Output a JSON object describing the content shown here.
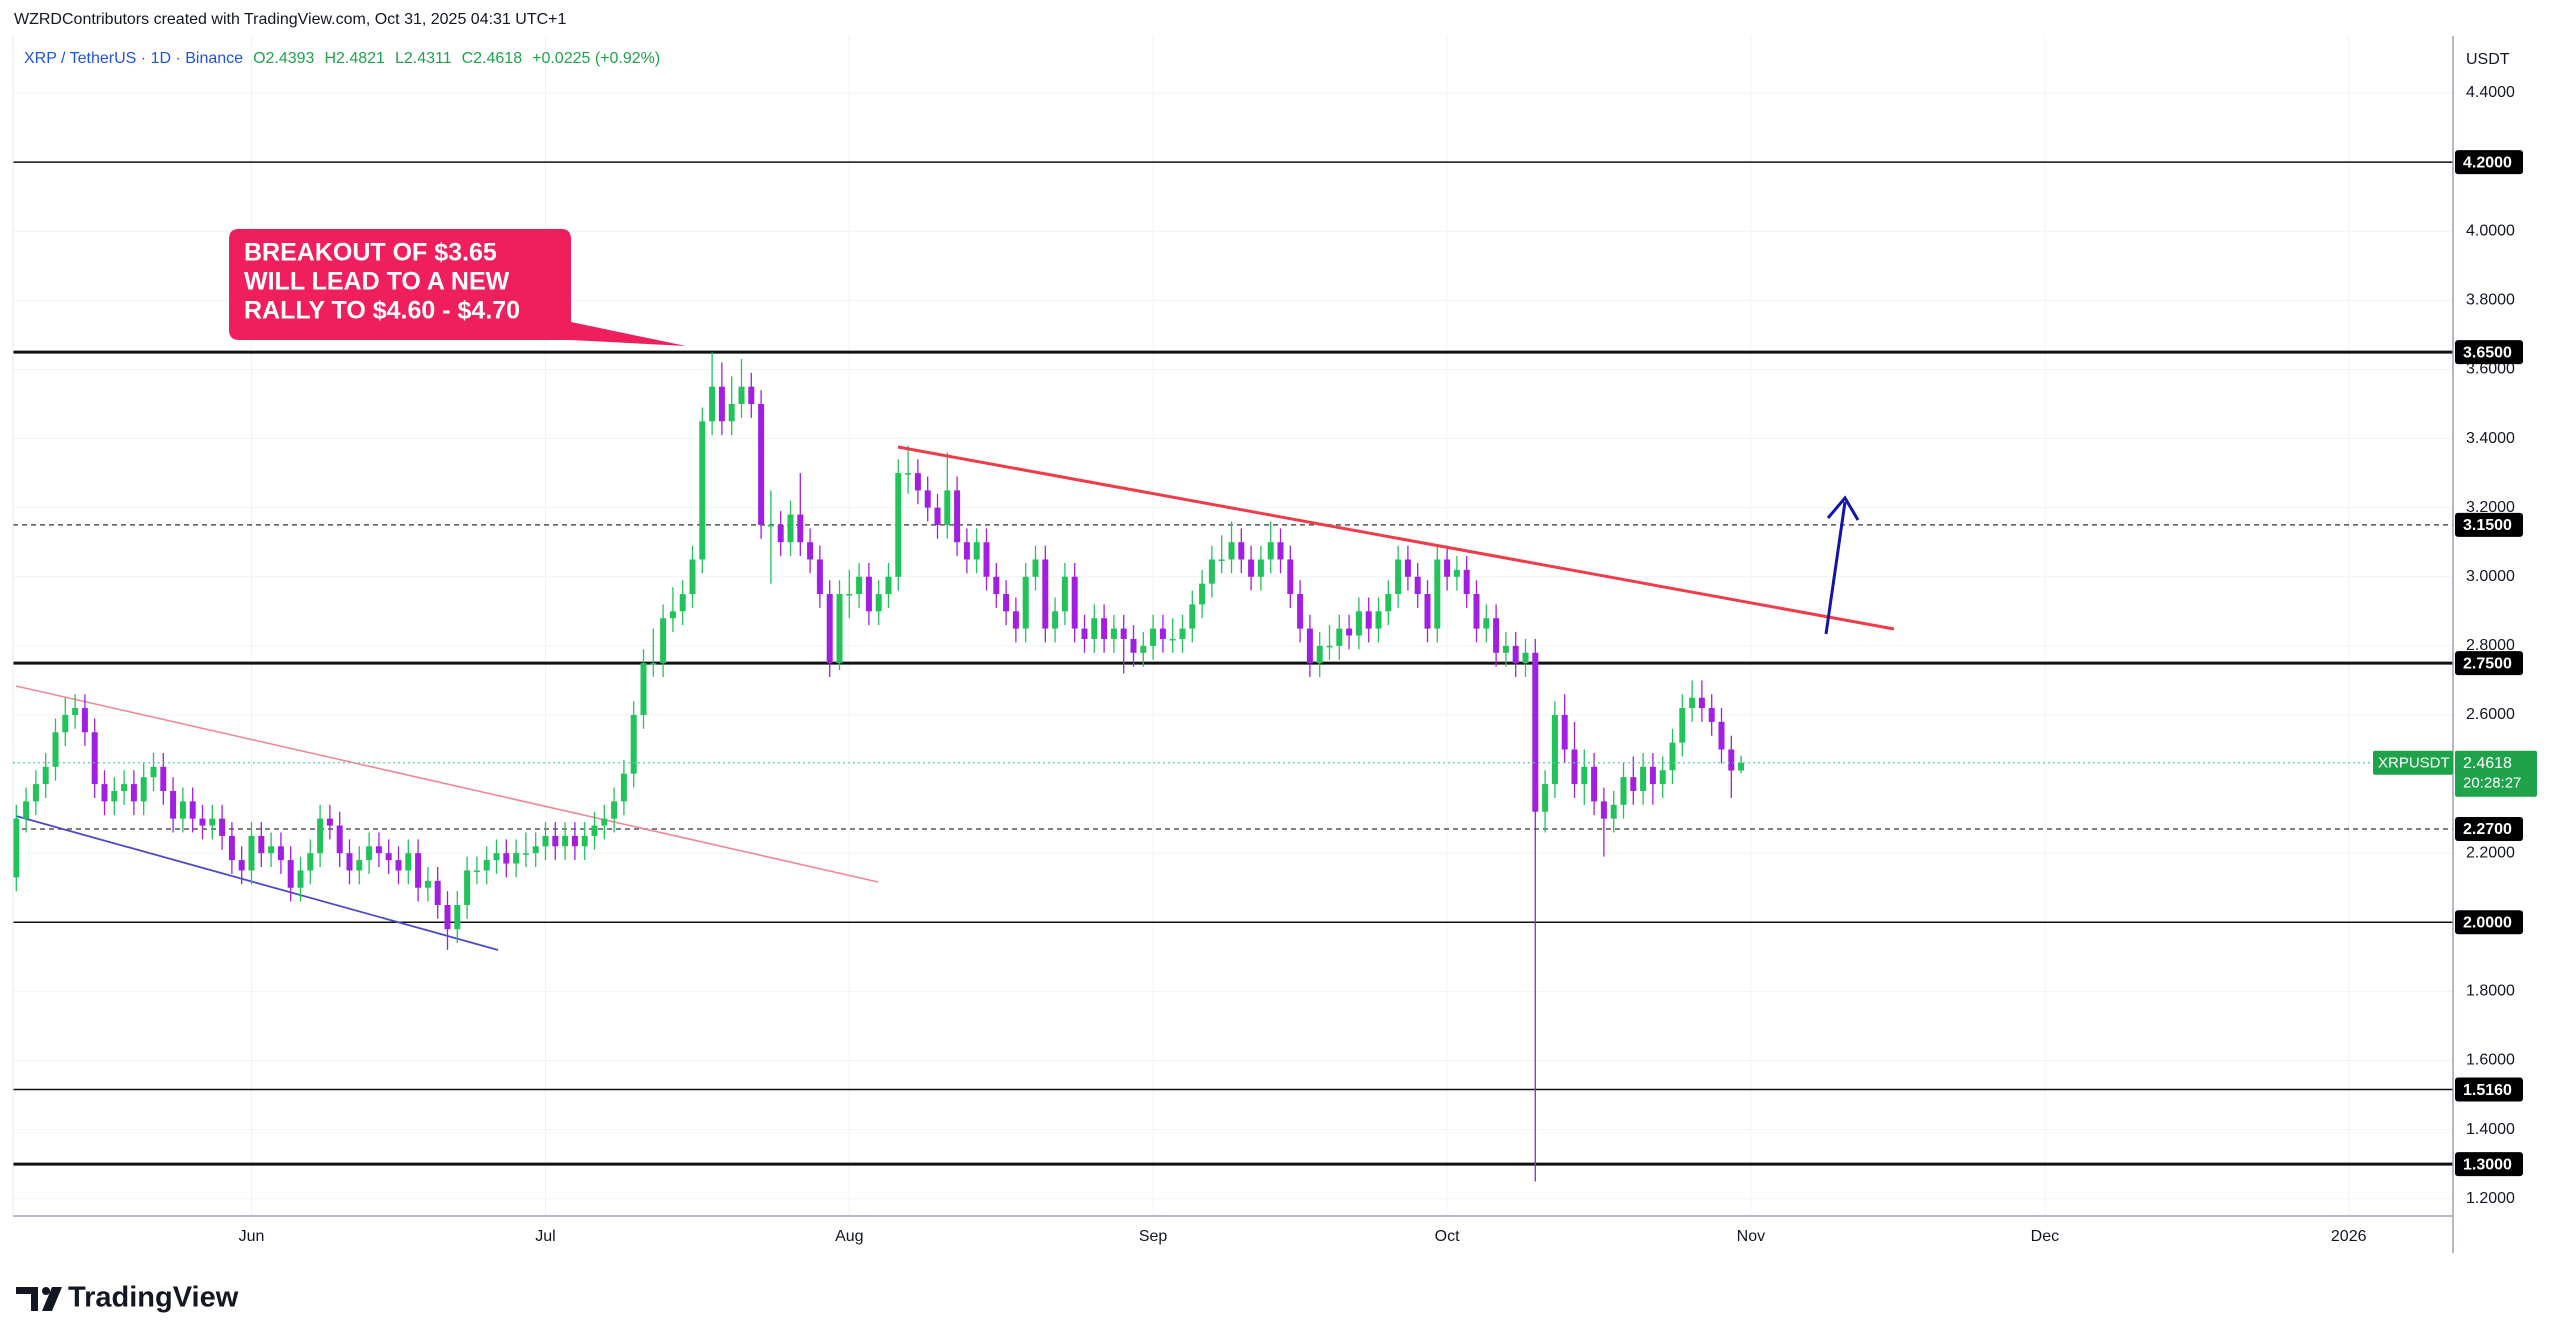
{
  "header": "WZRDContributors created with TradingView.com, Oct 31, 2025 04:31 UTC+1",
  "brand": "TradingView",
  "chart_data": {
    "type": "candlestick",
    "legend": {
      "symbol": "XRP / TetherUS · 1D · Binance",
      "open": "O2.4393",
      "high": "H2.4821",
      "low": "L2.4311",
      "close": "C2.4618",
      "change": "+0.0225 (+0.92%)"
    },
    "y_axis_label": "USDT",
    "up_color": "#22c35a",
    "down_color": "#a21ee0",
    "ylim": [
      1.15,
      4.565
    ],
    "yticks": [
      {
        "value": 4.4,
        "label": "4.4000"
      },
      {
        "value": 4.0,
        "label": "4.0000"
      },
      {
        "value": 3.8,
        "label": "3.8000"
      },
      {
        "value": 3.6,
        "label": "3.6000"
      },
      {
        "value": 3.4,
        "label": "3.4000"
      },
      {
        "value": 3.2,
        "label": "3.2000"
      },
      {
        "value": 3.0,
        "label": "3.0000"
      },
      {
        "value": 2.8,
        "label": "2.8000"
      },
      {
        "value": 2.6,
        "label": "2.6000"
      },
      {
        "value": 2.2,
        "label": "2.2000"
      },
      {
        "value": 1.8,
        "label": "1.8000"
      },
      {
        "value": 1.6,
        "label": "1.6000"
      },
      {
        "value": 1.4,
        "label": "1.4000"
      },
      {
        "value": 1.2,
        "label": "1.2000"
      }
    ],
    "grid": true,
    "x_labels": [
      "Jun",
      "Jul",
      "Aug",
      "Sep",
      "Oct",
      "Nov",
      "Dec",
      "2026"
    ],
    "levels": [
      {
        "value": 4.2,
        "label": "4.2000",
        "style": "solid",
        "weight": "thin"
      },
      {
        "value": 3.65,
        "label": "3.6500",
        "style": "solid",
        "weight": "thick"
      },
      {
        "value": 3.15,
        "label": "3.1500",
        "style": "dashed",
        "weight": "thin"
      },
      {
        "value": 2.75,
        "label": "2.7500",
        "style": "solid",
        "weight": "thick"
      },
      {
        "value": 2.27,
        "label": "2.2700",
        "style": "dashed",
        "weight": "thin"
      },
      {
        "value": 2.0,
        "label": "2.0000",
        "style": "solid",
        "weight": "thin"
      },
      {
        "value": 1.516,
        "label": "1.5160",
        "style": "solid",
        "weight": "thin"
      },
      {
        "value": 1.3,
        "label": "1.3000",
        "style": "solid",
        "weight": "thick"
      }
    ],
    "current_price": {
      "name": "XRPUSDT",
      "value": 2.4618,
      "label": "2.4618",
      "countdown": "20:28:27"
    },
    "annotation": [
      "BREAKOUT OF $3.65",
      "WILL LEAD TO A NEW",
      "RALLY TO $4.60 - $4.70"
    ],
    "candles": [
      [
        2.13,
        2.34,
        2.09,
        2.3
      ],
      [
        2.3,
        2.39,
        2.26,
        2.35
      ],
      [
        2.35,
        2.44,
        2.31,
        2.4
      ],
      [
        2.4,
        2.49,
        2.36,
        2.45
      ],
      [
        2.45,
        2.59,
        2.41,
        2.55
      ],
      [
        2.55,
        2.65,
        2.51,
        2.6
      ],
      [
        2.6,
        2.66,
        2.56,
        2.62
      ],
      [
        2.62,
        2.66,
        2.51,
        2.55
      ],
      [
        2.55,
        2.59,
        2.36,
        2.4
      ],
      [
        2.4,
        2.44,
        2.31,
        2.35
      ],
      [
        2.35,
        2.42,
        2.31,
        2.38
      ],
      [
        2.38,
        2.44,
        2.34,
        2.4
      ],
      [
        2.4,
        2.44,
        2.31,
        2.35
      ],
      [
        2.35,
        2.46,
        2.31,
        2.42
      ],
      [
        2.42,
        2.49,
        2.38,
        2.45
      ],
      [
        2.45,
        2.49,
        2.34,
        2.38
      ],
      [
        2.38,
        2.42,
        2.26,
        2.3
      ],
      [
        2.3,
        2.39,
        2.26,
        2.35
      ],
      [
        2.35,
        2.39,
        2.26,
        2.3
      ],
      [
        2.3,
        2.34,
        2.24,
        2.28
      ],
      [
        2.28,
        2.34,
        2.24,
        2.3
      ],
      [
        2.3,
        2.34,
        2.21,
        2.25
      ],
      [
        2.25,
        2.29,
        2.14,
        2.18
      ],
      [
        2.18,
        2.22,
        2.11,
        2.15
      ],
      [
        2.15,
        2.29,
        2.11,
        2.25
      ],
      [
        2.25,
        2.29,
        2.16,
        2.2
      ],
      [
        2.2,
        2.26,
        2.16,
        2.22
      ],
      [
        2.22,
        2.26,
        2.14,
        2.18
      ],
      [
        2.18,
        2.22,
        2.06,
        2.1
      ],
      [
        2.1,
        2.19,
        2.06,
        2.15
      ],
      [
        2.15,
        2.24,
        2.11,
        2.2
      ],
      [
        2.2,
        2.34,
        2.16,
        2.3
      ],
      [
        2.3,
        2.34,
        2.24,
        2.28
      ],
      [
        2.28,
        2.32,
        2.16,
        2.2
      ],
      [
        2.2,
        2.24,
        2.11,
        2.15
      ],
      [
        2.15,
        2.22,
        2.11,
        2.18
      ],
      [
        2.18,
        2.26,
        2.14,
        2.22
      ],
      [
        2.22,
        2.26,
        2.16,
        2.2
      ],
      [
        2.2,
        2.24,
        2.14,
        2.18
      ],
      [
        2.18,
        2.22,
        2.11,
        2.15
      ],
      [
        2.15,
        2.24,
        2.11,
        2.2
      ],
      [
        2.2,
        2.24,
        2.06,
        2.1
      ],
      [
        2.1,
        2.16,
        2.06,
        2.12
      ],
      [
        2.12,
        2.16,
        2.01,
        2.05
      ],
      [
        2.05,
        2.09,
        1.92,
        1.98
      ],
      [
        1.98,
        2.09,
        1.94,
        2.05
      ],
      [
        2.05,
        2.19,
        2.01,
        2.15
      ],
      [
        2.15,
        2.19,
        2.11,
        2.15
      ],
      [
        2.15,
        2.22,
        2.11,
        2.18
      ],
      [
        2.18,
        2.24,
        2.14,
        2.2
      ],
      [
        2.2,
        2.24,
        2.13,
        2.17
      ],
      [
        2.17,
        2.24,
        2.13,
        2.2
      ],
      [
        2.2,
        2.26,
        2.16,
        2.2
      ],
      [
        2.2,
        2.26,
        2.16,
        2.22
      ],
      [
        2.22,
        2.29,
        2.18,
        2.25
      ],
      [
        2.25,
        2.29,
        2.18,
        2.22
      ],
      [
        2.22,
        2.29,
        2.18,
        2.25
      ],
      [
        2.25,
        2.29,
        2.18,
        2.22
      ],
      [
        2.22,
        2.29,
        2.18,
        2.25
      ],
      [
        2.25,
        2.32,
        2.21,
        2.28
      ],
      [
        2.28,
        2.34,
        2.24,
        2.3
      ],
      [
        2.3,
        2.39,
        2.26,
        2.35
      ],
      [
        2.35,
        2.47,
        2.31,
        2.43
      ],
      [
        2.43,
        2.64,
        2.39,
        2.6
      ],
      [
        2.6,
        2.79,
        2.56,
        2.75
      ],
      [
        2.75,
        2.85,
        2.71,
        2.75
      ],
      [
        2.75,
        2.92,
        2.71,
        2.88
      ],
      [
        2.88,
        2.97,
        2.84,
        2.9
      ],
      [
        2.9,
        2.99,
        2.86,
        2.95
      ],
      [
        2.95,
        3.09,
        2.91,
        3.05
      ],
      [
        3.05,
        3.49,
        3.01,
        3.45
      ],
      [
        3.45,
        3.65,
        3.41,
        3.55
      ],
      [
        3.55,
        3.62,
        3.41,
        3.45
      ],
      [
        3.45,
        3.58,
        3.41,
        3.5
      ],
      [
        3.5,
        3.63,
        3.46,
        3.55
      ],
      [
        3.55,
        3.59,
        3.46,
        3.5
      ],
      [
        3.5,
        3.54,
        3.11,
        3.15
      ],
      [
        3.15,
        3.25,
        2.98,
        3.15
      ],
      [
        3.15,
        3.19,
        3.06,
        3.1
      ],
      [
        3.1,
        3.22,
        3.06,
        3.18
      ],
      [
        3.18,
        3.3,
        3.06,
        3.1
      ],
      [
        3.1,
        3.14,
        3.01,
        3.05
      ],
      [
        3.05,
        3.09,
        2.91,
        2.95
      ],
      [
        2.95,
        2.99,
        2.71,
        2.75
      ],
      [
        2.75,
        2.99,
        2.73,
        2.95
      ],
      [
        2.95,
        3.02,
        2.88,
        2.95
      ],
      [
        2.95,
        3.04,
        2.91,
        3.0
      ],
      [
        3.0,
        3.04,
        2.86,
        2.9
      ],
      [
        2.9,
        2.99,
        2.86,
        2.95
      ],
      [
        2.95,
        3.04,
        2.91,
        3.0
      ],
      [
        3.0,
        3.34,
        2.96,
        3.3
      ],
      [
        3.3,
        3.38,
        3.24,
        3.3
      ],
      [
        3.3,
        3.34,
        3.21,
        3.25
      ],
      [
        3.25,
        3.29,
        3.16,
        3.2
      ],
      [
        3.2,
        3.24,
        3.11,
        3.15
      ],
      [
        3.15,
        3.36,
        3.11,
        3.25
      ],
      [
        3.25,
        3.29,
        3.06,
        3.1
      ],
      [
        3.1,
        3.14,
        3.01,
        3.05
      ],
      [
        3.05,
        3.14,
        3.01,
        3.1
      ],
      [
        3.1,
        3.14,
        2.96,
        3.0
      ],
      [
        3.0,
        3.04,
        2.91,
        2.95
      ],
      [
        2.95,
        2.99,
        2.86,
        2.9
      ],
      [
        2.9,
        2.94,
        2.81,
        2.85
      ],
      [
        2.85,
        3.04,
        2.81,
        3.0
      ],
      [
        3.0,
        3.09,
        2.96,
        3.05
      ],
      [
        3.05,
        3.09,
        2.81,
        2.85
      ],
      [
        2.85,
        2.94,
        2.81,
        2.9
      ],
      [
        2.9,
        3.04,
        2.86,
        3.0
      ],
      [
        3.0,
        3.04,
        2.81,
        2.85
      ],
      [
        2.85,
        2.89,
        2.78,
        2.82
      ],
      [
        2.82,
        2.92,
        2.78,
        2.88
      ],
      [
        2.88,
        2.92,
        2.78,
        2.82
      ],
      [
        2.82,
        2.89,
        2.78,
        2.85
      ],
      [
        2.85,
        2.89,
        2.72,
        2.82
      ],
      [
        2.82,
        2.86,
        2.74,
        2.78
      ],
      [
        2.78,
        2.84,
        2.74,
        2.8
      ],
      [
        2.8,
        2.89,
        2.76,
        2.85
      ],
      [
        2.85,
        2.89,
        2.78,
        2.82
      ],
      [
        2.82,
        2.88,
        2.78,
        2.82
      ],
      [
        2.82,
        2.89,
        2.78,
        2.85
      ],
      [
        2.85,
        2.96,
        2.81,
        2.92
      ],
      [
        2.92,
        3.02,
        2.88,
        2.98
      ],
      [
        2.98,
        3.09,
        2.94,
        3.05
      ],
      [
        3.05,
        3.12,
        3.01,
        3.05
      ],
      [
        3.05,
        3.16,
        3.01,
        3.1
      ],
      [
        3.1,
        3.14,
        3.01,
        3.05
      ],
      [
        3.05,
        3.09,
        2.96,
        3.0
      ],
      [
        3.0,
        3.09,
        2.96,
        3.05
      ],
      [
        3.05,
        3.16,
        3.01,
        3.1
      ],
      [
        3.1,
        3.14,
        3.01,
        3.05
      ],
      [
        3.05,
        3.09,
        2.91,
        2.95
      ],
      [
        2.95,
        2.99,
        2.81,
        2.85
      ],
      [
        2.85,
        2.89,
        2.71,
        2.75
      ],
      [
        2.75,
        2.84,
        2.71,
        2.8
      ],
      [
        2.8,
        2.86,
        2.76,
        2.8
      ],
      [
        2.8,
        2.89,
        2.76,
        2.85
      ],
      [
        2.85,
        2.89,
        2.79,
        2.83
      ],
      [
        2.83,
        2.94,
        2.79,
        2.9
      ],
      [
        2.9,
        2.94,
        2.81,
        2.85
      ],
      [
        2.85,
        2.94,
        2.81,
        2.9
      ],
      [
        2.9,
        2.99,
        2.86,
        2.95
      ],
      [
        2.95,
        3.09,
        2.91,
        3.05
      ],
      [
        3.05,
        3.09,
        2.96,
        3.0
      ],
      [
        3.0,
        3.04,
        2.91,
        2.95
      ],
      [
        2.95,
        2.99,
        2.81,
        2.85
      ],
      [
        2.85,
        3.09,
        2.81,
        3.05
      ],
      [
        3.05,
        3.09,
        2.96,
        3.0
      ],
      [
        3.0,
        3.06,
        2.96,
        3.02
      ],
      [
        3.02,
        3.06,
        2.91,
        2.95
      ],
      [
        2.95,
        2.99,
        2.81,
        2.85
      ],
      [
        2.85,
        2.92,
        2.81,
        2.88
      ],
      [
        2.88,
        2.92,
        2.74,
        2.78
      ],
      [
        2.78,
        2.84,
        2.74,
        2.8
      ],
      [
        2.8,
        2.84,
        2.71,
        2.75
      ],
      [
        2.75,
        2.82,
        2.71,
        2.78
      ],
      [
        2.78,
        2.82,
        1.25,
        2.32
      ],
      [
        2.32,
        2.44,
        2.26,
        2.4
      ],
      [
        2.4,
        2.64,
        2.36,
        2.6
      ],
      [
        2.6,
        2.66,
        2.46,
        2.5
      ],
      [
        2.5,
        2.58,
        2.36,
        2.4
      ],
      [
        2.4,
        2.5,
        2.34,
        2.45
      ],
      [
        2.45,
        2.49,
        2.31,
        2.35
      ],
      [
        2.35,
        2.39,
        2.19,
        2.3
      ],
      [
        2.3,
        2.38,
        2.26,
        2.34
      ],
      [
        2.34,
        2.46,
        2.3,
        2.42
      ],
      [
        2.42,
        2.48,
        2.34,
        2.38
      ],
      [
        2.38,
        2.49,
        2.34,
        2.45
      ],
      [
        2.45,
        2.49,
        2.34,
        2.4
      ],
      [
        2.4,
        2.48,
        2.36,
        2.44
      ],
      [
        2.44,
        2.56,
        2.4,
        2.52
      ],
      [
        2.52,
        2.66,
        2.48,
        2.62
      ],
      [
        2.62,
        2.7,
        2.58,
        2.65
      ],
      [
        2.65,
        2.7,
        2.58,
        2.62
      ],
      [
        2.62,
        2.66,
        2.54,
        2.58
      ],
      [
        2.58,
        2.62,
        2.46,
        2.5
      ],
      [
        2.5,
        2.54,
        2.36,
        2.4393
      ],
      [
        2.4393,
        2.4821,
        2.4311,
        2.4618
      ]
    ]
  }
}
